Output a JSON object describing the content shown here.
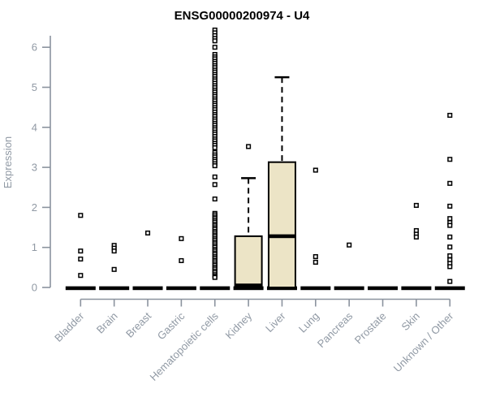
{
  "chart_data": {
    "type": "box",
    "title": "ENSG00000200974 - U4",
    "ylabel": "Expression",
    "xlabel": "",
    "ylim": [
      0,
      6
    ],
    "yticks": [
      0,
      1,
      2,
      3,
      4,
      5,
      6
    ],
    "grid": false,
    "legend": "none",
    "categories": [
      "Bladder",
      "Brain",
      "Breast",
      "Gastric",
      "Hematopoietic cells",
      "Kidney",
      "Liver",
      "Lung",
      "Pancreas",
      "Prostate",
      "Skin",
      "Unknown / Other"
    ],
    "series": [
      {
        "name": "Bladder",
        "median": 0,
        "q1": 0,
        "q3": 0,
        "whisker_low": 0,
        "whisker_high": 0,
        "outliers": [
          1.8,
          0.91,
          0.71,
          0.3
        ]
      },
      {
        "name": "Brain",
        "median": 0,
        "q1": 0,
        "q3": 0,
        "whisker_low": 0,
        "whisker_high": 0,
        "outliers": [
          1.05,
          0.98,
          0.91,
          0.45
        ]
      },
      {
        "name": "Breast",
        "median": 0,
        "q1": 0,
        "q3": 0,
        "whisker_low": 0,
        "whisker_high": 0,
        "outliers": [
          1.36
        ]
      },
      {
        "name": "Gastric",
        "median": 0,
        "q1": 0,
        "q3": 0,
        "whisker_low": 0,
        "whisker_high": 0,
        "outliers": [
          1.22,
          0.67
        ]
      },
      {
        "name": "Hematopoietic cells",
        "median": 0,
        "q1": 0,
        "q3": 0,
        "whisker_low": 0,
        "whisker_high": 0,
        "outliers": [
          6.43,
          6.36,
          6.29,
          6.22,
          6.16,
          6.0,
          5.82,
          5.76,
          5.71,
          5.65,
          5.6,
          5.54,
          5.49,
          5.43,
          5.38,
          5.32,
          5.27,
          5.21,
          5.16,
          5.1,
          5.04,
          4.99,
          4.93,
          4.88,
          4.82,
          4.77,
          4.71,
          4.66,
          4.6,
          4.55,
          4.49,
          4.44,
          4.38,
          4.32,
          4.27,
          4.21,
          4.16,
          4.1,
          4.05,
          3.99,
          3.94,
          3.88,
          3.83,
          3.77,
          3.71,
          3.66,
          3.6,
          3.55,
          3.49,
          3.37,
          3.31,
          3.26,
          3.2,
          3.15,
          3.09,
          3.04,
          2.76,
          2.57,
          2.21,
          1.85,
          1.81,
          1.76,
          1.72,
          1.67,
          1.63,
          1.58,
          1.54,
          1.49,
          1.45,
          1.4,
          1.36,
          1.31,
          1.27,
          1.22,
          1.18,
          1.13,
          1.09,
          1.04,
          1.0,
          0.95,
          0.91,
          0.86,
          0.82,
          0.77,
          0.73,
          0.68,
          0.64,
          0.59,
          0.55,
          0.5,
          0.46,
          0.41,
          0.37,
          0.32,
          0.28,
          0.25
        ]
      },
      {
        "name": "Kidney",
        "median": 0.05,
        "q1": 0,
        "q3": 1.28,
        "whisker_low": 0,
        "whisker_high": 2.73,
        "outliers": [
          3.52
        ]
      },
      {
        "name": "Liver",
        "median": 1.28,
        "q1": 0,
        "q3": 3.13,
        "whisker_low": 0,
        "whisker_high": 5.25,
        "outliers": []
      },
      {
        "name": "Lung",
        "median": 0,
        "q1": 0,
        "q3": 0,
        "whisker_low": 0,
        "whisker_high": 0,
        "outliers": [
          2.93,
          0.77,
          0.63
        ]
      },
      {
        "name": "Pancreas",
        "median": 0,
        "q1": 0,
        "q3": 0,
        "whisker_low": 0,
        "whisker_high": 0,
        "outliers": [
          1.06
        ]
      },
      {
        "name": "Prostate",
        "median": 0,
        "q1": 0,
        "q3": 0,
        "whisker_low": 0,
        "whisker_high": 0,
        "outliers": []
      },
      {
        "name": "Skin",
        "median": 0,
        "q1": 0,
        "q3": 0,
        "whisker_low": 0,
        "whisker_high": 0,
        "outliers": [
          2.05,
          1.42,
          1.33,
          1.26
        ]
      },
      {
        "name": "Unknown / Other",
        "median": 0,
        "q1": 0,
        "q3": 0,
        "whisker_low": 0,
        "whisker_high": 0,
        "outliers": [
          4.3,
          3.2,
          2.6,
          2.03,
          1.72,
          1.62,
          1.55,
          1.26,
          1.01,
          0.79,
          0.69,
          0.6,
          0.52,
          0.15
        ]
      }
    ],
    "style": {
      "box_fill": "#ece4c6",
      "box_stroke": "#000000",
      "axis_color": "#8b939e",
      "text_color": "#9099a4",
      "title_color": "#000000",
      "background": "#ffffff"
    }
  }
}
